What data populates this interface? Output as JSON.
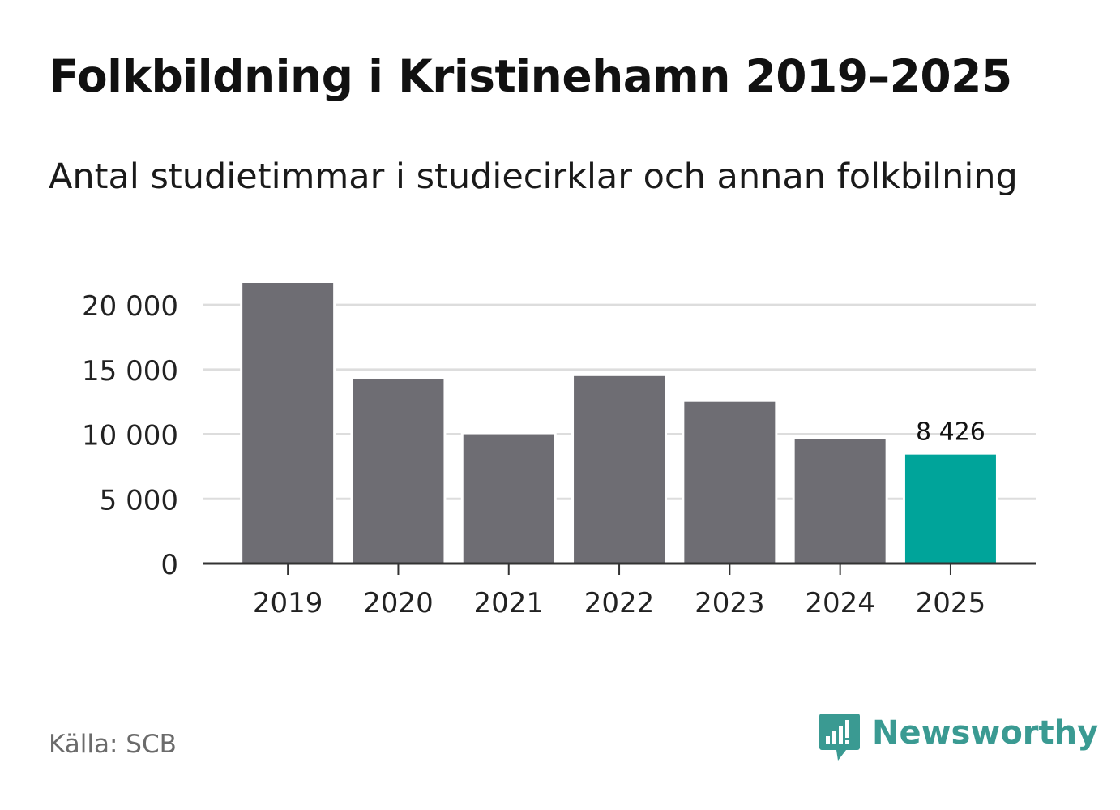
{
  "chart_data": {
    "type": "bar",
    "title": "Folkbildning i Kristinehamn 2019–2025",
    "subtitle": "Antal studietimmar i studiecirklar och annan folkbilning",
    "categories": [
      "2019",
      "2020",
      "2021",
      "2022",
      "2023",
      "2024",
      "2025"
    ],
    "values": [
      21700,
      14300,
      10000,
      14500,
      12500,
      9600,
      8426
    ],
    "ylim": [
      0,
      21700
    ],
    "yticks": [
      0,
      5000,
      10000,
      15000,
      20000
    ],
    "ytick_labels": [
      "0",
      "5 000",
      "10 000",
      "15 000",
      "20 000"
    ],
    "highlight_index": 6,
    "data_labels": [
      {
        "index": 6,
        "text": "8 426"
      }
    ],
    "grid": true,
    "xlabel": "",
    "ylabel": ""
  },
  "colors": {
    "bar": "#6e6d73",
    "highlight": "#00a49a",
    "grid": "#dddddd",
    "axis": "#333333",
    "brand": "#3a9a92"
  },
  "footer": {
    "source": "Källa: SCB",
    "brand_name": "Newsworthy",
    "brand_icon": "newsworthy-chart-bubble-icon"
  }
}
